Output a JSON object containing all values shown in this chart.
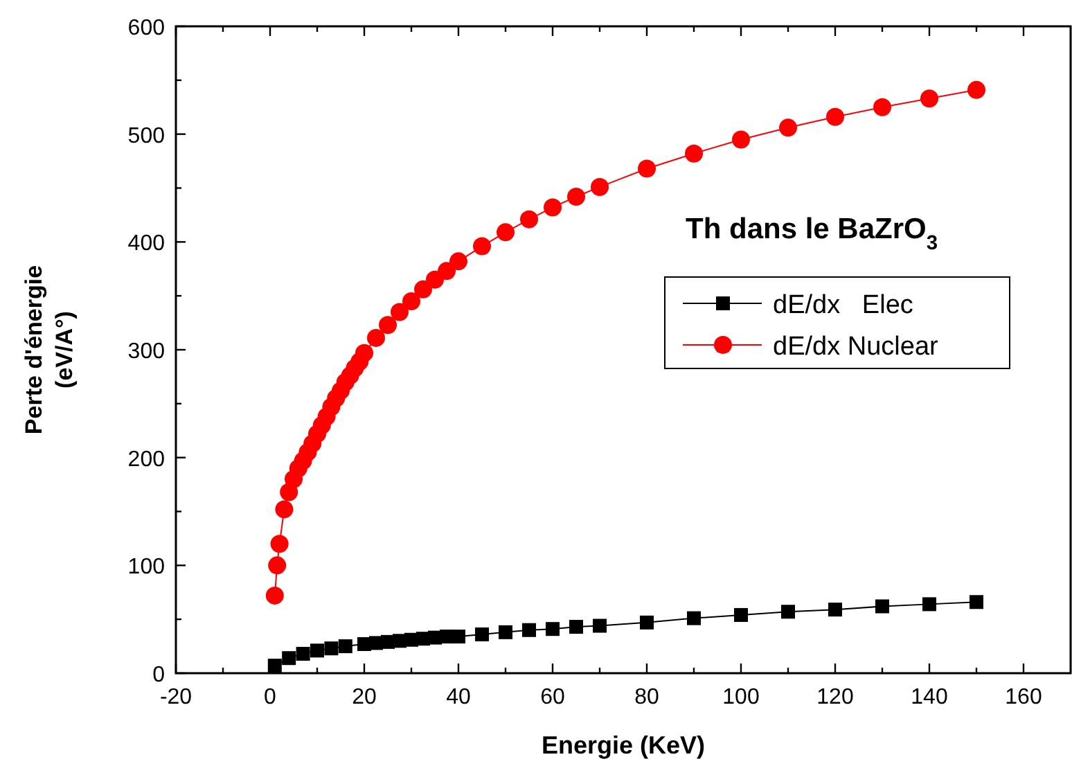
{
  "chart_data": {
    "type": "line",
    "xlabel": "Energie (KeV)",
    "ylabel": "Perte d'énergie\n(eV/A°)",
    "annotations": [
      "Th dans le BaZrO$_{3}$"
    ],
    "xlim": [
      -20,
      170
    ],
    "ylim": [
      0,
      600
    ],
    "xticks": [
      -20,
      {
        "value": -10,
        "label": null
      },
      0,
      {
        "value": 10,
        "label": null
      },
      20,
      {
        "value": 30,
        "label": null
      },
      40,
      {
        "value": 50,
        "label": null
      },
      60,
      {
        "value": 70,
        "label": null
      },
      80,
      {
        "value": 90,
        "label": null
      },
      100,
      {
        "value": 110,
        "label": null
      },
      120,
      {
        "value": 130,
        "label": null
      },
      140,
      {
        "value": 150,
        "label": null
      },
      160
    ],
    "yticks": [
      0,
      {
        "value": 50,
        "label": null
      },
      100,
      {
        "value": 150,
        "label": null
      },
      200,
      {
        "value": 250,
        "label": null
      },
      300,
      {
        "value": 350,
        "label": null
      },
      400,
      {
        "value": 450,
        "label": null
      },
      500,
      {
        "value": 550,
        "label": null
      },
      600
    ],
    "grid": false,
    "legend": "right",
    "series": [
      {
        "name": "dE/dx   Elec",
        "color": "#000000",
        "marker": "square",
        "x": [
          1,
          4,
          7,
          10,
          13,
          16,
          20,
          22.5,
          25,
          27.5,
          30,
          32.5,
          35,
          37.5,
          40,
          45,
          50,
          55,
          60,
          65,
          70,
          80,
          90,
          100,
          110,
          120,
          130,
          140,
          150
        ],
        "values": [
          7,
          14,
          18,
          21,
          23,
          25,
          27,
          28,
          29,
          30,
          31,
          32,
          33,
          34,
          34,
          36,
          38,
          40,
          41,
          43,
          44,
          47,
          51,
          54,
          57,
          59,
          62,
          64,
          66
        ]
      },
      {
        "name": "dE/dx Nuclear",
        "color": "#ff0000",
        "marker": "circle",
        "x": [
          1,
          1.5,
          2,
          3,
          4,
          5,
          6,
          7,
          8,
          9,
          10,
          11,
          12,
          13,
          14,
          15,
          16,
          17,
          18,
          19,
          20,
          22.5,
          25,
          27.5,
          30,
          32.5,
          35,
          37.5,
          40,
          45,
          50,
          55,
          60,
          65,
          70,
          80,
          90,
          100,
          110,
          120,
          130,
          140,
          150
        ],
        "values": [
          72,
          100,
          120,
          152,
          168,
          180,
          190,
          197,
          205,
          213,
          222,
          230,
          238,
          247,
          255,
          262,
          270,
          276,
          283,
          289,
          297,
          311,
          323,
          335,
          345,
          356,
          365,
          373,
          382,
          396,
          409,
          421,
          432,
          442,
          451,
          468,
          482,
          495,
          506,
          516,
          525,
          533,
          541
        ]
      }
    ]
  }
}
